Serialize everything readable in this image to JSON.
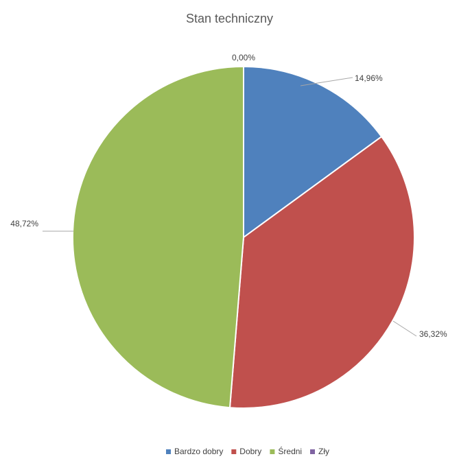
{
  "chart_data": {
    "type": "pie",
    "title": "Stan techniczny",
    "categories": [
      "Bardzo dobry",
      "Dobry",
      "Średni",
      "Zły"
    ],
    "values": [
      14.96,
      36.32,
      48.72,
      0.0
    ],
    "data_labels": [
      "14,96%",
      "36,32%",
      "48,72%",
      "0,00%"
    ],
    "colors": [
      "#4F81BD",
      "#C0504D",
      "#9BBB59",
      "#8064A2"
    ],
    "legend_position": "bottom"
  }
}
